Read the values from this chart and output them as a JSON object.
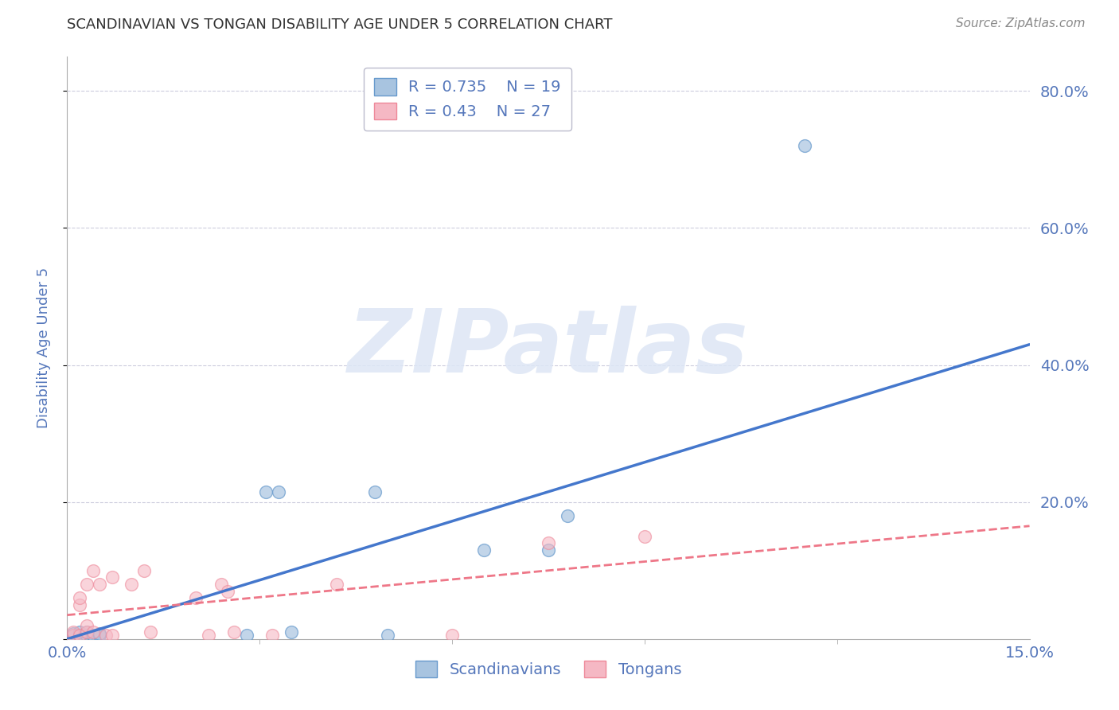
{
  "title": "SCANDINAVIAN VS TONGAN DISABILITY AGE UNDER 5 CORRELATION CHART",
  "source": "Source: ZipAtlas.com",
  "ylabel": "Disability Age Under 5",
  "watermark": "ZIPatlas",
  "xlim": [
    0.0,
    0.15
  ],
  "ylim": [
    0.0,
    0.85
  ],
  "xticks": [
    0.0,
    0.15
  ],
  "xtick_labels": [
    "0.0%",
    "15.0%"
  ],
  "ytick_vals_right": [
    0.0,
    0.2,
    0.4,
    0.6,
    0.8
  ],
  "ytick_labels_right": [
    "",
    "20.0%",
    "40.0%",
    "60.0%",
    "80.0%"
  ],
  "legend1_label": "Scandinavians",
  "legend2_label": "Tongans",
  "R_scand": 0.735,
  "N_scand": 19,
  "R_tong": 0.43,
  "N_tong": 27,
  "scand_color": "#a8c4e0",
  "tong_color": "#f5b8c4",
  "scand_edge_color": "#6699cc",
  "tong_edge_color": "#ee8899",
  "scand_line_color": "#4477cc",
  "tong_line_color": "#ee7788",
  "background_color": "#ffffff",
  "grid_color": "#ccccdd",
  "title_color": "#333333",
  "tick_color": "#5577bb",
  "scand_points_x": [
    0.001,
    0.001,
    0.002,
    0.002,
    0.003,
    0.003,
    0.004,
    0.005,
    0.005,
    0.028,
    0.031,
    0.033,
    0.035,
    0.048,
    0.05,
    0.065,
    0.075,
    0.078,
    0.115
  ],
  "scand_points_y": [
    0.005,
    0.008,
    0.005,
    0.01,
    0.005,
    0.01,
    0.005,
    0.005,
    0.008,
    0.005,
    0.215,
    0.215,
    0.01,
    0.215,
    0.005,
    0.13,
    0.13,
    0.18,
    0.72
  ],
  "tong_points_x": [
    0.001,
    0.001,
    0.002,
    0.002,
    0.002,
    0.003,
    0.003,
    0.003,
    0.004,
    0.004,
    0.005,
    0.006,
    0.007,
    0.007,
    0.01,
    0.012,
    0.013,
    0.02,
    0.022,
    0.024,
    0.025,
    0.026,
    0.032,
    0.042,
    0.06,
    0.075,
    0.09
  ],
  "tong_points_y": [
    0.005,
    0.01,
    0.005,
    0.05,
    0.06,
    0.01,
    0.02,
    0.08,
    0.01,
    0.1,
    0.08,
    0.005,
    0.005,
    0.09,
    0.08,
    0.1,
    0.01,
    0.06,
    0.005,
    0.08,
    0.07,
    0.01,
    0.005,
    0.08,
    0.005,
    0.14,
    0.15
  ],
  "scand_trend_x": [
    0.0,
    0.15
  ],
  "scand_trend_y": [
    0.0,
    0.43
  ],
  "tong_trend_x": [
    0.0,
    0.15
  ],
  "tong_trend_y": [
    0.035,
    0.165
  ]
}
